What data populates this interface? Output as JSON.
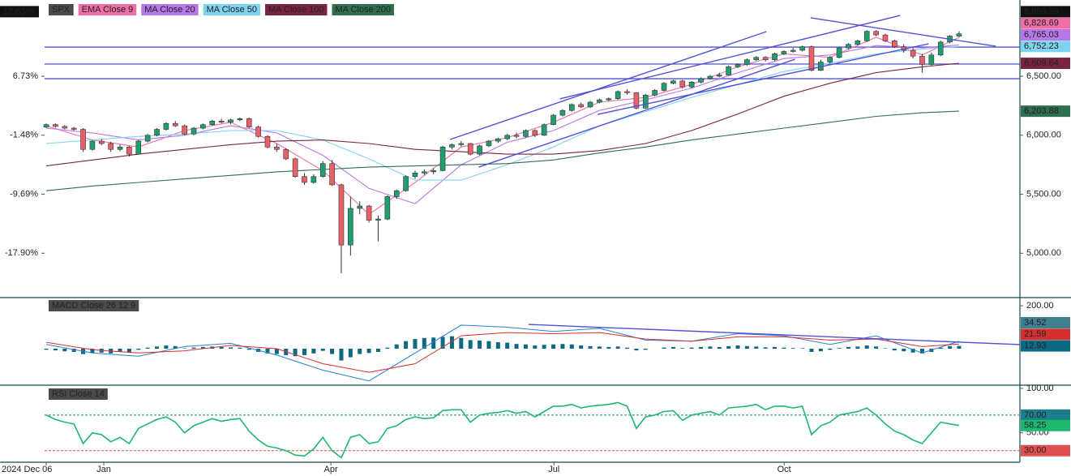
{
  "chart_data": [
    {
      "type": "candlestick",
      "title": "SPX",
      "xlim": [
        -0.18,
        105.6
      ],
      "ylim": [
        4631,
        7146
      ],
      "yticks": [
        {
          "value": 6500,
          "label": "6,500.00"
        },
        {
          "value": 6000,
          "label": "6,000.00"
        },
        {
          "value": 5500,
          "label": "5,500.00"
        },
        {
          "value": 5000,
          "label": "5,000.00"
        }
      ],
      "y2lim": [
        -23.96,
        17.34
      ],
      "y2ticks": [
        {
          "value": 6.73,
          "label": "6.73%"
        },
        {
          "value": -1.48,
          "label": "-1.48%"
        },
        {
          "value": -9.69,
          "label": "-9.69%"
        },
        {
          "value": -17.9,
          "label": "-17.90%"
        }
      ],
      "y2_last": {
        "value": 12.63,
        "label": "12.63%"
      },
      "candles": {
        "up_color": "#1f9e6e",
        "down_color": "#e8606a",
        "last_label": "6,859.39",
        "open": [
          6070,
          6090,
          6075,
          6060,
          6050,
          5880,
          5950,
          5930,
          5880,
          5900,
          5840,
          5950,
          6000,
          6050,
          6100,
          6080,
          6010,
          6060,
          6090,
          6120,
          6110,
          6130,
          6140,
          6070,
          5990,
          5900,
          5880,
          5800,
          5650,
          5600,
          5650,
          5760,
          5580,
          5070,
          5380,
          5400,
          5280,
          5290,
          5480,
          5530,
          5650,
          5680,
          5690,
          5700,
          5900,
          5920,
          5930,
          5840,
          5910,
          5950,
          5970,
          6000,
          5990,
          6040,
          6000,
          6090,
          6170,
          6210,
          6260,
          6240,
          6280,
          6300,
          6310,
          6370,
          6360,
          6230,
          6340,
          6380,
          6440,
          6460,
          6410,
          6450,
          6480,
          6500,
          6510,
          6580,
          6600,
          6640,
          6660,
          6640,
          6690,
          6710,
          6720,
          6750,
          6550,
          6620,
          6660,
          6740,
          6770,
          6800,
          6880,
          6850,
          6800,
          6750,
          6720,
          6670,
          6600,
          6680,
          6790,
          6840
        ],
        "high": [
          6100,
          6100,
          6085,
          6070,
          6060,
          5960,
          5970,
          5945,
          5920,
          5910,
          5960,
          6010,
          6060,
          6110,
          6120,
          6090,
          6070,
          6100,
          6130,
          6140,
          6140,
          6150,
          6150,
          6080,
          6000,
          5930,
          5890,
          5810,
          5680,
          5670,
          5780,
          5790,
          5590,
          5480,
          5440,
          5410,
          5320,
          5490,
          5540,
          5660,
          5700,
          5710,
          5720,
          5910,
          5930,
          5950,
          5935,
          5920,
          5960,
          5980,
          6010,
          6020,
          6050,
          6050,
          6100,
          6180,
          6220,
          6270,
          6275,
          6290,
          6310,
          6320,
          6380,
          6390,
          6365,
          6350,
          6390,
          6450,
          6470,
          6470,
          6460,
          6490,
          6510,
          6530,
          6590,
          6610,
          6650,
          6670,
          6670,
          6700,
          6720,
          6740,
          6760,
          6760,
          6640,
          6670,
          6750,
          6780,
          6810,
          6890,
          6890,
          6860,
          6810,
          6770,
          6740,
          6690,
          6700,
          6800,
          6850,
          6880
        ],
        "low": [
          6060,
          6065,
          6050,
          6040,
          5860,
          5870,
          5915,
          5860,
          5865,
          5820,
          5835,
          5940,
          5990,
          6040,
          6070,
          6000,
          6000,
          6050,
          6080,
          6100,
          6095,
          6120,
          6060,
          5980,
          5890,
          5860,
          5790,
          5640,
          5580,
          5590,
          5640,
          5570,
          4830,
          4980,
          5330,
          5260,
          5100,
          5280,
          5460,
          5520,
          5630,
          5660,
          5670,
          5695,
          5880,
          5905,
          5830,
          5830,
          5900,
          5935,
          5960,
          5975,
          5980,
          5985,
          5995,
          6085,
          6160,
          6200,
          6230,
          6230,
          6270,
          6290,
          6300,
          6345,
          6220,
          6225,
          6330,
          6370,
          6430,
          6395,
          6400,
          6440,
          6470,
          6490,
          6505,
          6570,
          6590,
          6630,
          6625,
          6630,
          6680,
          6700,
          6710,
          6540,
          6545,
          6610,
          6650,
          6730,
          6760,
          6790,
          6840,
          6790,
          6740,
          6700,
          6650,
          6530,
          6590,
          6670,
          6780,
          6830
        ],
        "close": [
          6090,
          6075,
          6060,
          6050,
          5880,
          5950,
          5930,
          5880,
          5900,
          5840,
          5950,
          6000,
          6050,
          6100,
          6080,
          6010,
          6060,
          6090,
          6120,
          6110,
          6130,
          6140,
          6070,
          5990,
          5900,
          5880,
          5800,
          5650,
          5600,
          5650,
          5760,
          5580,
          5070,
          5380,
          5400,
          5280,
          5290,
          5480,
          5530,
          5650,
          5680,
          5690,
          5700,
          5900,
          5920,
          5930,
          5840,
          5910,
          5950,
          5970,
          6000,
          5990,
          6040,
          6000,
          6090,
          6170,
          6210,
          6260,
          6240,
          6280,
          6300,
          6310,
          6370,
          6360,
          6230,
          6340,
          6380,
          6440,
          6460,
          6410,
          6450,
          6480,
          6500,
          6510,
          6580,
          6600,
          6640,
          6660,
          6640,
          6690,
          6710,
          6720,
          6750,
          6550,
          6620,
          6660,
          6740,
          6770,
          6800,
          6880,
          6850,
          6800,
          6750,
          6720,
          6670,
          6600,
          6680,
          6790,
          6840,
          6859.39
        ]
      },
      "ma_x": [
        0,
        5,
        10,
        15,
        20,
        25,
        30,
        35,
        40,
        45,
        50,
        55,
        60,
        65,
        70,
        75,
        80,
        85,
        90,
        95,
        99
      ],
      "series": [
        {
          "name": "EMA Close 9",
          "color": "#ee6fa8",
          "last_label": "6,828.69",
          "values": [
            6080,
            5960,
            5900,
            6040,
            6110,
            5930,
            5700,
            5330,
            5600,
            5900,
            5980,
            6110,
            6280,
            6320,
            6430,
            6580,
            6690,
            6660,
            6830,
            6680,
            6828.69
          ]
        },
        {
          "name": "MA Close 20",
          "color": "#b877e8",
          "last_label": "6,765.03",
          "values": [
            6060,
            6020,
            5960,
            6000,
            6080,
            6020,
            5830,
            5550,
            5420,
            5750,
            5940,
            6040,
            6210,
            6300,
            6400,
            6530,
            6650,
            6680,
            6760,
            6740,
            6765.03
          ]
        },
        {
          "name": "MA Close 50",
          "color": "#7fd3ee",
          "last_label": "6,752.23",
          "values": [
            5930,
            5960,
            5990,
            6010,
            6040,
            6040,
            5960,
            5800,
            5620,
            5620,
            5750,
            5900,
            6080,
            6200,
            6320,
            6430,
            6540,
            6610,
            6690,
            6730,
            6752.23
          ]
        },
        {
          "name": "MA Close 100",
          "color": "#7a2540",
          "last_label": "6,609.64",
          "values": [
            5740,
            5790,
            5840,
            5880,
            5920,
            5950,
            5960,
            5930,
            5880,
            5860,
            5840,
            5840,
            5870,
            5930,
            6040,
            6180,
            6330,
            6440,
            6530,
            6580,
            6609.64
          ]
        },
        {
          "name": "MA Close 200",
          "color": "#2f6e4e",
          "last_label": "6,203.88",
          "values": [
            5530,
            5570,
            5600,
            5630,
            5660,
            5690,
            5710,
            5730,
            5740,
            5750,
            5760,
            5790,
            5850,
            5900,
            5960,
            6010,
            6060,
            6110,
            6160,
            6190,
            6203.88
          ]
        }
      ],
      "line_color": "#5050d8",
      "hlines": [
        6747,
        6603,
        6479
      ],
      "trendlines": [
        [
          43.8,
          5964,
          78.1,
          6878
        ],
        [
          46.9,
          5730,
          81.2,
          6644
        ],
        [
          55.7,
          6308,
          92.6,
          7015
        ],
        [
          59.8,
          6177,
          95.7,
          6775
        ],
        [
          82.9,
          6995,
          103,
          6754
        ]
      ]
    },
    {
      "type": "macd",
      "title": "MACD Close 26 12 9",
      "xlim": [
        -0.18,
        105.6
      ],
      "ylim": [
        -170,
        238
      ],
      "yticks": [
        {
          "value": 200,
          "label": "200.00"
        }
      ],
      "x": [
        0,
        5,
        10,
        15,
        20,
        25,
        30,
        35,
        40,
        45,
        50,
        55,
        60,
        65,
        70,
        75,
        80,
        85,
        90,
        95,
        99
      ],
      "macd": {
        "color": "#2a7fd4",
        "values": [
          20,
          -20,
          -35,
          10,
          25,
          -30,
          -100,
          -150,
          -20,
          110,
          100,
          80,
          95,
          40,
          35,
          70,
          60,
          20,
          60,
          -20,
          34.52
        ]
      },
      "signal": {
        "color": "#d43030",
        "values": [
          30,
          -5,
          -20,
          -10,
          15,
          0,
          -70,
          -110,
          -70,
          60,
          75,
          70,
          75,
          45,
          35,
          55,
          55,
          40,
          45,
          10,
          21.59
        ]
      },
      "histogram": {
        "color": "#0e6a82",
        "values": [
          -5,
          -8,
          -12,
          -15,
          -25,
          -20,
          -18,
          -22,
          -15,
          -18,
          -5,
          5,
          10,
          15,
          12,
          2,
          5,
          8,
          10,
          8,
          6,
          5,
          -5,
          -15,
          -22,
          -25,
          -30,
          -35,
          -30,
          -22,
          -10,
          -25,
          -55,
          -40,
          -25,
          -20,
          -15,
          5,
          20,
          35,
          45,
          50,
          52,
          55,
          58,
          50,
          40,
          38,
          35,
          30,
          28,
          22,
          20,
          15,
          18,
          20,
          22,
          20,
          15,
          12,
          10,
          8,
          10,
          5,
          -8,
          -5,
          0,
          5,
          8,
          3,
          5,
          8,
          10,
          8,
          12,
          15,
          12,
          10,
          6,
          8,
          5,
          3,
          2,
          -15,
          -12,
          -5,
          3,
          8,
          10,
          15,
          10,
          2,
          -8,
          -12,
          -18,
          -22,
          -15,
          5,
          12,
          12.93
        ]
      },
      "line_color": "#5050d8",
      "trendline": [
        52.3,
        113,
        105.6,
        19
      ]
    },
    {
      "type": "line",
      "title": "RSI Close 14",
      "xlim": [
        -0.18,
        105.6
      ],
      "ylim": [
        17,
        103.6
      ],
      "yticks": [
        {
          "value": 100,
          "label": "100.00"
        },
        {
          "value": 50,
          "label": "50.00"
        }
      ],
      "levels": [
        {
          "value": 70,
          "label": "70.00",
          "color": "#1a7f8a"
        },
        {
          "value": 30,
          "label": "30.00",
          "color": "#e05050"
        }
      ],
      "series": [
        {
          "color": "#1db870",
          "values": [
            70,
            65,
            62,
            60,
            38,
            50,
            48,
            40,
            45,
            38,
            55,
            60,
            65,
            68,
            62,
            50,
            58,
            62,
            66,
            63,
            65,
            66,
            52,
            42,
            35,
            33,
            30,
            25,
            24,
            32,
            45,
            30,
            22,
            45,
            48,
            38,
            40,
            55,
            58,
            65,
            68,
            66,
            67,
            75,
            76,
            76,
            62,
            70,
            72,
            73,
            75,
            72,
            74,
            68,
            74,
            80,
            80,
            82,
            78,
            80,
            81,
            82,
            84,
            80,
            55,
            68,
            70,
            74,
            75,
            64,
            70,
            72,
            74,
            70,
            78,
            79,
            80,
            82,
            76,
            80,
            80,
            78,
            80,
            48,
            58,
            62,
            70,
            72,
            74,
            78,
            70,
            60,
            52,
            48,
            42,
            38,
            50,
            62,
            60,
            58.25
          ]
        }
      ],
      "xticks": [
        {
          "value": 0,
          "label": "2024 Dec 06"
        },
        {
          "value": 6.24,
          "label": "Jan"
        },
        {
          "value": 30.87,
          "label": "Apr"
        },
        {
          "value": 55.06,
          "label": "Jul"
        },
        {
          "value": 80.03,
          "label": "Oct"
        }
      ]
    }
  ]
}
